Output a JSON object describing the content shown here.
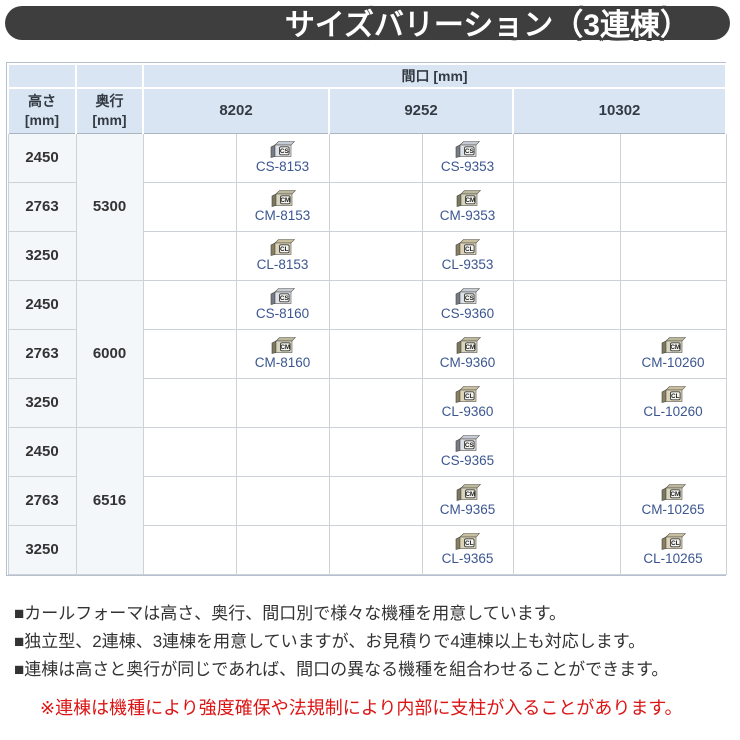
{
  "title": "サイズバリーション（3連棟）",
  "colors": {
    "title-bar": "#3e3e3e",
    "header-bg": "#d9e5f3",
    "row-tint": "#f3f7fa",
    "link": "#3b5690",
    "note-red": "#dc1414"
  },
  "table": {
    "span_header": "間口 [mm]",
    "corner": {
      "height_label": "高さ",
      "depth_label": "奥行",
      "unit": "[mm]"
    },
    "col_headers": [
      "8202",
      "9252",
      "10302"
    ],
    "groups": [
      {
        "depth": "5300",
        "rows": [
          {
            "height": "2450",
            "cells": [
              null,
              {
                "icon": "CS",
                "code": "CS-8153"
              },
              null,
              {
                "icon": "CS",
                "code": "CS-9353"
              },
              null,
              null
            ]
          },
          {
            "height": "2763",
            "cells": [
              null,
              {
                "icon": "CM",
                "code": "CM-8153"
              },
              null,
              {
                "icon": "CM",
                "code": "CM-9353"
              },
              null,
              null
            ]
          },
          {
            "height": "3250",
            "cells": [
              null,
              {
                "icon": "CL",
                "code": "CL-8153"
              },
              null,
              {
                "icon": "CL",
                "code": "CL-9353"
              },
              null,
              null
            ]
          }
        ]
      },
      {
        "depth": "6000",
        "rows": [
          {
            "height": "2450",
            "cells": [
              null,
              {
                "icon": "CS",
                "code": "CS-8160"
              },
              null,
              {
                "icon": "CS",
                "code": "CS-9360"
              },
              null,
              null
            ]
          },
          {
            "height": "2763",
            "cells": [
              null,
              {
                "icon": "CM",
                "code": "CM-8160"
              },
              null,
              {
                "icon": "CM",
                "code": "CM-9360"
              },
              null,
              {
                "icon": "CM",
                "code": "CM-10260"
              }
            ]
          },
          {
            "height": "3250",
            "cells": [
              null,
              null,
              null,
              {
                "icon": "CL",
                "code": "CL-9360"
              },
              null,
              {
                "icon": "CL",
                "code": "CL-10260"
              }
            ]
          }
        ]
      },
      {
        "depth": "6516",
        "rows": [
          {
            "height": "2450",
            "cells": [
              null,
              null,
              null,
              {
                "icon": "CS",
                "code": "CS-9365"
              },
              null,
              null
            ]
          },
          {
            "height": "2763",
            "cells": [
              null,
              null,
              null,
              {
                "icon": "CM",
                "code": "CM-9365"
              },
              null,
              {
                "icon": "CM",
                "code": "CM-10265"
              }
            ]
          },
          {
            "height": "3250",
            "cells": [
              null,
              null,
              null,
              {
                "icon": "CL",
                "code": "CL-9365"
              },
              null,
              {
                "icon": "CL",
                "code": "CL-10265"
              }
            ]
          }
        ]
      }
    ]
  },
  "notes": [
    "■カールフォーマは高さ、奥行、間口別で様々な機種を用意しています。",
    "■独立型、2連棟、3連棟を用意していますが、お見積りで4連棟以上も対応します。",
    "■連棟は高さと奥行が同じであれば、間口の異なる機種を組合わせることができます。"
  ],
  "warning": "※連棟は機種により強度確保や法規制により内部に支柱が入ることがあります。"
}
